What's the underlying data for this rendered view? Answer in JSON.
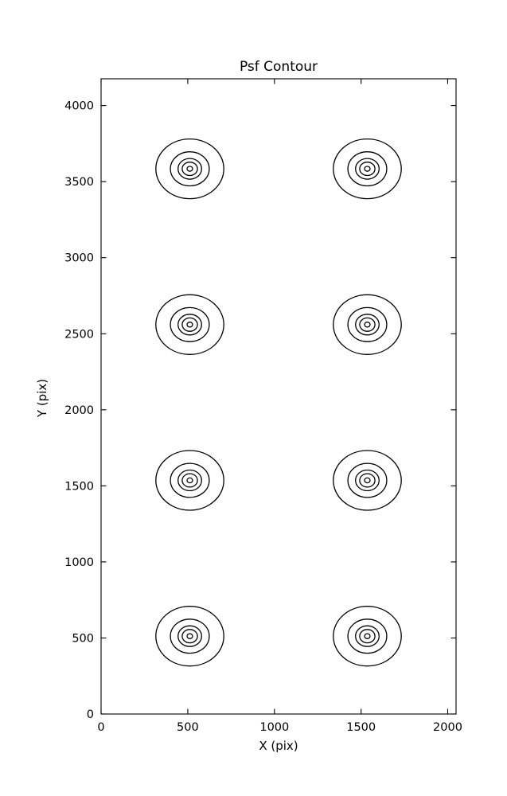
{
  "figure": {
    "background": "#ffffff"
  },
  "chart_data": {
    "type": "contour",
    "title": "Psf Contour",
    "xlabel": "X (pix)",
    "ylabel": "Y (pix)",
    "xlim": [
      0,
      2048
    ],
    "ylim": [
      0,
      4176
    ],
    "xticks": [
      0,
      500,
      1000,
      1500,
      2000
    ],
    "yticks": [
      0,
      500,
      1000,
      1500,
      2000,
      2500,
      3000,
      3500,
      4000
    ],
    "grid": false,
    "legend": "none",
    "line_color": "#000000",
    "background": "#ffffff",
    "psf_centers": [
      {
        "x": 512,
        "y": 512
      },
      {
        "x": 1536,
        "y": 512
      },
      {
        "x": 512,
        "y": 1536
      },
      {
        "x": 1536,
        "y": 1536
      },
      {
        "x": 512,
        "y": 2560
      },
      {
        "x": 1536,
        "y": 2560
      },
      {
        "x": 512,
        "y": 3584
      },
      {
        "x": 1536,
        "y": 3584
      }
    ],
    "contour_radii_pix": [
      196,
      112,
      68,
      44,
      16
    ]
  }
}
